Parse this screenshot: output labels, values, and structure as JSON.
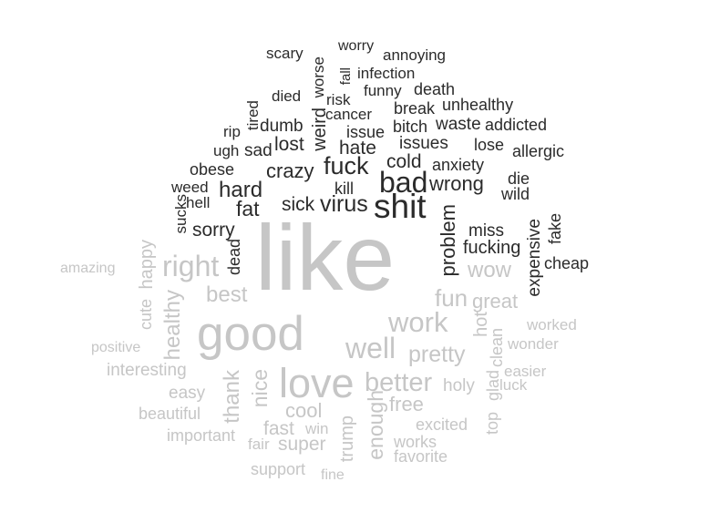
{
  "colors": {
    "negative": "#2b2b2b",
    "positive": "#c6c6c6"
  },
  "words": [
    {
      "text": "scary",
      "group": "negative"
    },
    {
      "text": "worry",
      "group": "negative"
    },
    {
      "text": "annoying",
      "group": "negative"
    },
    {
      "text": "worse",
      "group": "negative"
    },
    {
      "text": "fall",
      "group": "negative"
    },
    {
      "text": "infection",
      "group": "negative"
    },
    {
      "text": "died",
      "group": "negative"
    },
    {
      "text": "risk",
      "group": "negative"
    },
    {
      "text": "funny",
      "group": "negative"
    },
    {
      "text": "death",
      "group": "negative"
    },
    {
      "text": "tired",
      "group": "negative"
    },
    {
      "text": "break",
      "group": "negative"
    },
    {
      "text": "unhealthy",
      "group": "negative"
    },
    {
      "text": "rip",
      "group": "negative"
    },
    {
      "text": "dumb",
      "group": "negative"
    },
    {
      "text": "weird",
      "group": "negative"
    },
    {
      "text": "cancer",
      "group": "negative"
    },
    {
      "text": "bitch",
      "group": "negative"
    },
    {
      "text": "waste",
      "group": "negative"
    },
    {
      "text": "addicted",
      "group": "negative"
    },
    {
      "text": "issue",
      "group": "negative"
    },
    {
      "text": "ugh",
      "group": "negative"
    },
    {
      "text": "sad",
      "group": "negative"
    },
    {
      "text": "lost",
      "group": "negative"
    },
    {
      "text": "hate",
      "group": "negative"
    },
    {
      "text": "issues",
      "group": "negative"
    },
    {
      "text": "lose",
      "group": "negative"
    },
    {
      "text": "allergic",
      "group": "negative"
    },
    {
      "text": "obese",
      "group": "negative"
    },
    {
      "text": "crazy",
      "group": "negative"
    },
    {
      "text": "fuck",
      "group": "negative"
    },
    {
      "text": "cold",
      "group": "negative"
    },
    {
      "text": "anxiety",
      "group": "negative"
    },
    {
      "text": "weed",
      "group": "negative"
    },
    {
      "text": "hard",
      "group": "negative"
    },
    {
      "text": "bad",
      "group": "negative"
    },
    {
      "text": "wrong",
      "group": "negative"
    },
    {
      "text": "die",
      "group": "negative"
    },
    {
      "text": "hell",
      "group": "negative"
    },
    {
      "text": "kill",
      "group": "negative"
    },
    {
      "text": "wild",
      "group": "negative"
    },
    {
      "text": "fat",
      "group": "negative"
    },
    {
      "text": "sick",
      "group": "negative"
    },
    {
      "text": "virus",
      "group": "negative"
    },
    {
      "text": "shit",
      "group": "negative"
    },
    {
      "text": "sucks",
      "group": "negative"
    },
    {
      "text": "sorry",
      "group": "negative"
    },
    {
      "text": "problem",
      "group": "negative"
    },
    {
      "text": "miss",
      "group": "negative"
    },
    {
      "text": "expensive",
      "group": "negative"
    },
    {
      "text": "fake",
      "group": "negative"
    },
    {
      "text": "fucking",
      "group": "negative"
    },
    {
      "text": "dead",
      "group": "negative"
    },
    {
      "text": "cheap",
      "group": "negative"
    },
    {
      "text": "happy",
      "group": "positive"
    },
    {
      "text": "amazing",
      "group": "positive"
    },
    {
      "text": "right",
      "group": "positive"
    },
    {
      "text": "like",
      "group": "positive"
    },
    {
      "text": "wow",
      "group": "positive"
    },
    {
      "text": "cute",
      "group": "positive"
    },
    {
      "text": "best",
      "group": "positive"
    },
    {
      "text": "fun",
      "group": "positive"
    },
    {
      "text": "great",
      "group": "positive"
    },
    {
      "text": "healthy",
      "group": "positive"
    },
    {
      "text": "work",
      "group": "positive"
    },
    {
      "text": "hot",
      "group": "positive"
    },
    {
      "text": "worked",
      "group": "positive"
    },
    {
      "text": "good",
      "group": "positive"
    },
    {
      "text": "positive",
      "group": "positive"
    },
    {
      "text": "well",
      "group": "positive"
    },
    {
      "text": "pretty",
      "group": "positive"
    },
    {
      "text": "clean",
      "group": "positive"
    },
    {
      "text": "wonder",
      "group": "positive"
    },
    {
      "text": "interesting",
      "group": "positive"
    },
    {
      "text": "easier",
      "group": "positive"
    },
    {
      "text": "nice",
      "group": "positive"
    },
    {
      "text": "love",
      "group": "positive"
    },
    {
      "text": "better",
      "group": "positive"
    },
    {
      "text": "holy",
      "group": "positive"
    },
    {
      "text": "glad",
      "group": "positive"
    },
    {
      "text": "luck",
      "group": "positive"
    },
    {
      "text": "easy",
      "group": "positive"
    },
    {
      "text": "thank",
      "group": "positive"
    },
    {
      "text": "free",
      "group": "positive"
    },
    {
      "text": "beautiful",
      "group": "positive"
    },
    {
      "text": "cool",
      "group": "positive"
    },
    {
      "text": "top",
      "group": "positive"
    },
    {
      "text": "enough",
      "group": "positive"
    },
    {
      "text": "important",
      "group": "positive"
    },
    {
      "text": "fast",
      "group": "positive"
    },
    {
      "text": "win",
      "group": "positive"
    },
    {
      "text": "excited",
      "group": "positive"
    },
    {
      "text": "fair",
      "group": "positive"
    },
    {
      "text": "super",
      "group": "positive"
    },
    {
      "text": "trump",
      "group": "positive"
    },
    {
      "text": "works",
      "group": "positive"
    },
    {
      "text": "favorite",
      "group": "positive"
    },
    {
      "text": "support",
      "group": "positive"
    },
    {
      "text": "fine",
      "group": "positive"
    }
  ]
}
